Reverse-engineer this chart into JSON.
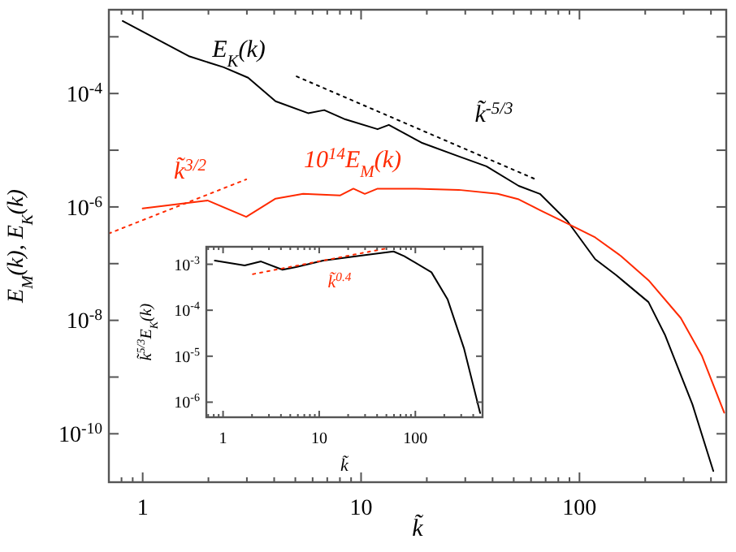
{
  "chart_data": [
    {
      "type": "line",
      "log": "xy",
      "xlabel": "k̃",
      "ylabel": "E$_{M}$(k),  E$_{K}$(k)",
      "xlim": [
        0.7,
        470
      ],
      "ylim": [
        1.4e-11,
        0.003
      ],
      "xticks": [
        1,
        10,
        100
      ],
      "yticks": [
        {
          "value": 1e-10,
          "label": "10$^{-10}$"
        },
        {
          "value": 1e-09,
          "label": null
        },
        {
          "value": 1e-08,
          "label": "10$^{-8}$"
        },
        {
          "value": 1e-07,
          "label": null
        },
        {
          "value": 1e-06,
          "label": "10$^{-6}$"
        },
        {
          "value": 1e-05,
          "label": null
        },
        {
          "value": 0.0001,
          "label": "10$^{-4}$"
        },
        {
          "value": 0.001,
          "label": null
        }
      ],
      "series": [
        {
          "name": "E$_{K}$(k)",
          "color": "#000000",
          "x": [
            0.81,
            1.64,
            2.35,
            3.04,
            4.06,
            5.72,
            6.78,
            8.47,
            11.9,
            13.4,
            18.9,
            28.0,
            37.5,
            52.7,
            65.9,
            88.1,
            118,
            147,
            207,
            246,
            329,
            410
          ],
          "values": [
            0.0019,
            0.00045,
            0.00029,
            0.00019,
            7.3e-05,
            4.5e-05,
            5.1e-05,
            3.5e-05,
            2.35e-05,
            2.8e-05,
            1.36e-05,
            7.8e-06,
            5.2e-06,
            2.35e-06,
            1.7e-06,
            5.6e-07,
            1.2e-07,
            6.3e-08,
            2.1e-08,
            5.6e-09,
            3.3e-10,
            2.2e-11
          ]
        },
        {
          "name": "10$^{14}$E$_{M}$(k)",
          "color": "#ff2a00",
          "x": [
            1.0,
            1.98,
            2.98,
            4.06,
            5.43,
            8.03,
            9.22,
            10.4,
            11.9,
            17.9,
            28.0,
            42.2,
            52.7,
            65.9,
            88.1,
            118,
            155,
            207,
            291,
            364,
            460
          ],
          "values": [
            9.4e-07,
            1.3e-06,
            6.7e-07,
            1.4e-06,
            1.7e-06,
            1.6e-06,
            2.1e-06,
            1.7e-06,
            2.1e-06,
            2.1e-06,
            2e-06,
            1.7e-06,
            1.36e-06,
            8.8e-07,
            5.1e-07,
            2.9e-07,
            1.36e-07,
            5.1e-08,
            1.1e-08,
            2.35e-09,
            2.35e-10
          ]
        },
        {
          "name": "k̃$^{-5/3}$",
          "type": "line",
          "color": "#000000",
          "line_style": "dotted",
          "x": [
            5.07,
            62.6
          ],
          "values": [
            0.0002,
            3.1e-06
          ]
        },
        {
          "name": "k̃$^{3/2}$",
          "type": "line",
          "color": "#ff2a00",
          "line_style": "dotted",
          "x": [
            0.7,
            2.98
          ],
          "values": [
            3.4e-07,
            3.06e-06
          ]
        }
      ]
    },
    {
      "type": "line",
      "log": "xy",
      "xlabel": "k̃",
      "ylabel": "k̃$^{5/3}$E$_{K}$(k)",
      "xlim": [
        0.67,
        500
      ],
      "ylim": [
        4.7e-07,
        0.0024
      ],
      "xticks": [
        1,
        10,
        100
      ],
      "yticks": [
        {
          "value": 1e-06,
          "label": "10$^{-6}$"
        },
        {
          "value": 1e-05,
          "label": "10$^{-5}$"
        },
        {
          "value": 0.0001,
          "label": "10$^{-4}$"
        },
        {
          "value": 0.001,
          "label": "10$^{-3}$"
        }
      ],
      "series": [
        {
          "color": "#000000",
          "x": [
            0.82,
            1.68,
            2.48,
            4.15,
            5.75,
            11.0,
            31.0,
            59.4,
            76.8,
            147,
            217,
            320,
            472
          ],
          "values": [
            0.0012,
            0.00094,
            0.00115,
            0.00076,
            0.00087,
            0.0012,
            0.0016,
            0.0019,
            0.0015,
            0.00067,
            0.00017,
            1.5e-05,
            5.8e-07
          ]
        },
        {
          "name": "k̃$^{0.4}$",
          "type": "line",
          "color": "#ff2a00",
          "line_style": "dotted",
          "x": [
            2.04,
            52
          ],
          "values": [
            0.00061,
            0.00225
          ]
        }
      ]
    }
  ]
}
